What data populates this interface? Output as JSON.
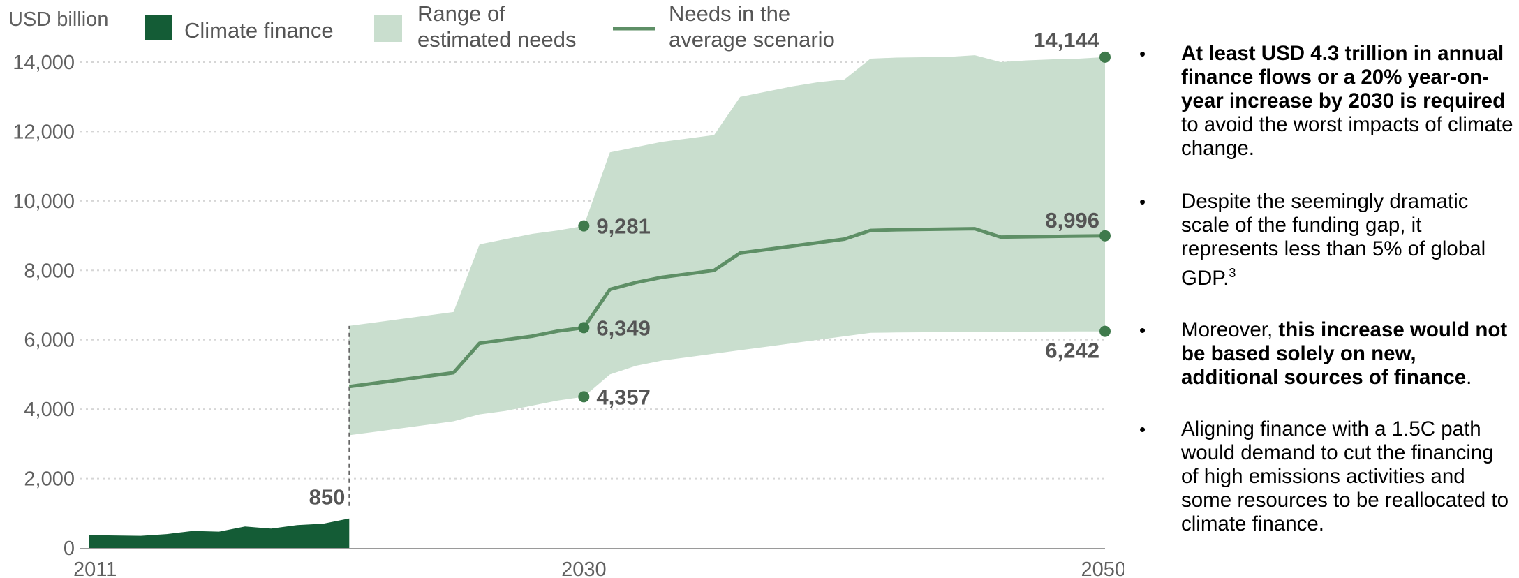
{
  "chart_data": {
    "type": "area",
    "unit_label": "USD billion",
    "ylim": [
      0,
      14500
    ],
    "yticks": [
      0,
      2000,
      4000,
      6000,
      8000,
      10000,
      12000,
      14000
    ],
    "ytick_labels": [
      "0",
      "2,000",
      "4,000",
      "6,000",
      "8,000",
      "10,000",
      "12,000",
      "14,000"
    ],
    "xlim": [
      2011,
      2050
    ],
    "xticks": [
      2011,
      2030,
      2050
    ],
    "xtick_labels": [
      "2011",
      "2030",
      "2050"
    ],
    "grid": "horizontal dotted",
    "legend_position": "top",
    "legend": [
      {
        "label": "Climate finance",
        "kind": "swatch-dark"
      },
      {
        "label": "Range of estimated needs",
        "kind": "swatch-light"
      },
      {
        "label": "Needs in the average scenario",
        "kind": "line"
      }
    ],
    "colors": {
      "finance": "#145c36",
      "range": "#c9dece",
      "avg": "#5e8f66",
      "dot": "#3f7a4c"
    },
    "series": [
      {
        "name": "Climate finance",
        "x": [
          2011,
          2012,
          2013,
          2014,
          2015,
          2016,
          2017,
          2018,
          2019,
          2020,
          2021
        ],
        "values": [
          370,
          360,
          350,
          400,
          490,
          470,
          620,
          560,
          660,
          700,
          850
        ]
      },
      {
        "name": "Range of estimated needs",
        "x": [
          2021,
          2022,
          2023,
          2024,
          2025,
          2026,
          2027,
          2028,
          2029,
          2030,
          2031,
          2032,
          2033,
          2034,
          2035,
          2036,
          2037,
          2038,
          2039,
          2040,
          2041,
          2042,
          2043,
          2044,
          2045,
          2046,
          2047,
          2048,
          2049,
          2050
        ],
        "upper": [
          6400,
          6500,
          6600,
          6700,
          6800,
          8750,
          8900,
          9050,
          9150,
          9281,
          11400,
          11550,
          11700,
          11800,
          11900,
          13000,
          13150,
          13300,
          13420,
          13500,
          14100,
          14130,
          14140,
          14150,
          14200,
          14000,
          14050,
          14080,
          14100,
          14144
        ],
        "lower": [
          3250,
          3350,
          3450,
          3550,
          3650,
          3850,
          3950,
          4100,
          4250,
          4357,
          5000,
          5250,
          5400,
          5500,
          5600,
          5700,
          5800,
          5900,
          6000,
          6100,
          6200,
          6210,
          6215,
          6220,
          6225,
          6230,
          6235,
          6238,
          6240,
          6242
        ]
      },
      {
        "name": "Needs in the average scenario",
        "x": [
          2021,
          2022,
          2023,
          2024,
          2025,
          2026,
          2027,
          2028,
          2029,
          2030,
          2031,
          2032,
          2033,
          2034,
          2035,
          2036,
          2037,
          2038,
          2039,
          2040,
          2041,
          2042,
          2043,
          2044,
          2045,
          2046,
          2047,
          2048,
          2049,
          2050
        ],
        "values": [
          4650,
          4750,
          4850,
          4950,
          5050,
          5900,
          6000,
          6100,
          6250,
          6349,
          7450,
          7650,
          7800,
          7900,
          8000,
          8500,
          8600,
          8700,
          8800,
          8900,
          9150,
          9170,
          9180,
          9190,
          9200,
          8960,
          8970,
          8980,
          8990,
          8996
        ]
      }
    ],
    "annotations": [
      {
        "x": 2021,
        "y": 850,
        "label": "850",
        "dot": false
      },
      {
        "x": 2030,
        "y": 9281,
        "label": "9,281",
        "dot": true
      },
      {
        "x": 2030,
        "y": 6349,
        "label": "6,349",
        "dot": true
      },
      {
        "x": 2030,
        "y": 4357,
        "label": "4,357",
        "dot": true
      },
      {
        "x": 2050,
        "y": 14144,
        "label": "14,144",
        "dot": true
      },
      {
        "x": 2050,
        "y": 8996,
        "label": "8,996",
        "dot": true
      },
      {
        "x": 2050,
        "y": 6242,
        "label": "6,242",
        "dot": true
      }
    ]
  },
  "bullets": [
    {
      "bold": "At least USD 4.3 trillion in annual finance flows or a 20% year-on-year increase by 2030 is required",
      "rest": " to avoid the worst impacts of climate change."
    },
    {
      "pre": "Despite the seemingly dramatic scale of the funding gap, it represents less than 5% of global GDP.",
      "sup": "3"
    },
    {
      "pre": "Moreover, ",
      "bold": "this increase would not be based solely on new, additional sources of finance",
      "rest": "."
    },
    {
      "pre": "Aligning finance with a 1.5C path would demand to cut the financing of high emissions activities and some resources to be reallocated to climate finance."
    }
  ]
}
